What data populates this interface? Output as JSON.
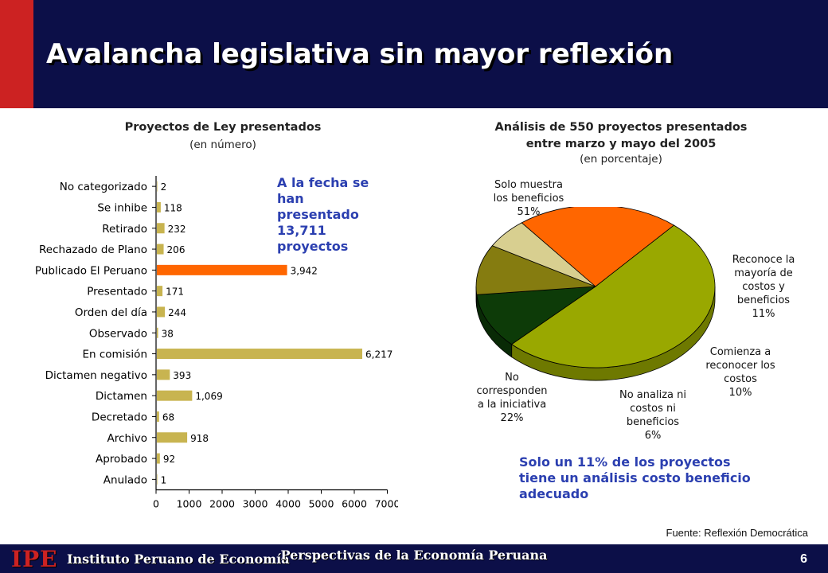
{
  "slide": {
    "title": "Avalancha legislativa sin mayor reflexión",
    "callout_left": "A la fecha se han presentado 13,711 proyectos",
    "callout_right": "Solo un 11% de los proyectos tiene un análisis costo beneficio adecuado",
    "source": "Fuente: Reflexión Democrática"
  },
  "footer": {
    "logo": "IPE",
    "institution": "Instituto Peruano de Economía",
    "center": "Perspectivas de la Economía Peruana",
    "page": "6"
  },
  "colors": {
    "header_bg": "#0c0f48",
    "accent_red": "#cc2222",
    "bar_default": "#c8b450",
    "bar_highlight": "#ff6600",
    "callout_text": "#2b3fb0"
  },
  "chart_data": [
    {
      "type": "bar",
      "orientation": "horizontal",
      "title": "Proyectos de Ley presentados",
      "subtitle": "(en número)",
      "categories": [
        "No categorizado",
        "Se inhibe",
        "Retirado",
        "Rechazado de Plano",
        "Publicado El Peruano",
        "Presentado",
        "Orden del día",
        "Observado",
        "En comisión",
        "Dictamen negativo",
        "Dictamen",
        "Decretado",
        "Archivo",
        "Aprobado",
        "Anulado"
      ],
      "values": [
        2,
        118,
        232,
        206,
        3942,
        171,
        244,
        38,
        6217,
        393,
        1069,
        68,
        918,
        92,
        1
      ],
      "value_labels": [
        "2",
        "118",
        "232",
        "206",
        "3,942",
        "171",
        "244",
        "38",
        "6,217",
        "393",
        "1,069",
        "68",
        "918",
        "92",
        "1"
      ],
      "highlight_category": "Publicado El Peruano",
      "xlim": [
        0,
        7000
      ],
      "xticks": [
        0,
        1000,
        2000,
        3000,
        4000,
        5000,
        6000,
        7000
      ],
      "grid": false
    },
    {
      "type": "pie",
      "title": "Análisis de 550 proyectos presentados entre marzo y mayo del 2005",
      "title_line1": "Análisis de 550 proyectos presentados",
      "title_line2": "entre marzo y mayo del 2005",
      "subtitle": "(en porcentaje)",
      "slices": [
        {
          "label": "Solo muestra los beneficios 51%",
          "lines": [
            "Solo muestra",
            "los beneficios",
            "51%"
          ],
          "value": 51,
          "color": "#99a800"
        },
        {
          "label": "Reconoce la mayoría de costos y beneficios 11%",
          "lines": [
            "Reconoce la",
            "mayoría de",
            "costos y",
            "beneficios",
            "11%"
          ],
          "value": 11,
          "color": "#0d3b08"
        },
        {
          "label": "Comienza a reconocer los costos 10%",
          "lines": [
            "Comienza a",
            "reconocer los",
            "costos",
            "10%"
          ],
          "value": 10,
          "color": "#857c10"
        },
        {
          "label": "No analiza ni costos ni beneficios 6%",
          "lines": [
            "No analiza ni",
            "costos ni",
            "beneficios",
            "6%"
          ],
          "value": 6,
          "color": "#d8cf90"
        },
        {
          "label": "No corresponden a la iniciativa 22%",
          "lines": [
            "No",
            "corresponden",
            "a la iniciativa",
            "22%"
          ],
          "value": 22,
          "color": "#ff6600"
        }
      ]
    }
  ]
}
